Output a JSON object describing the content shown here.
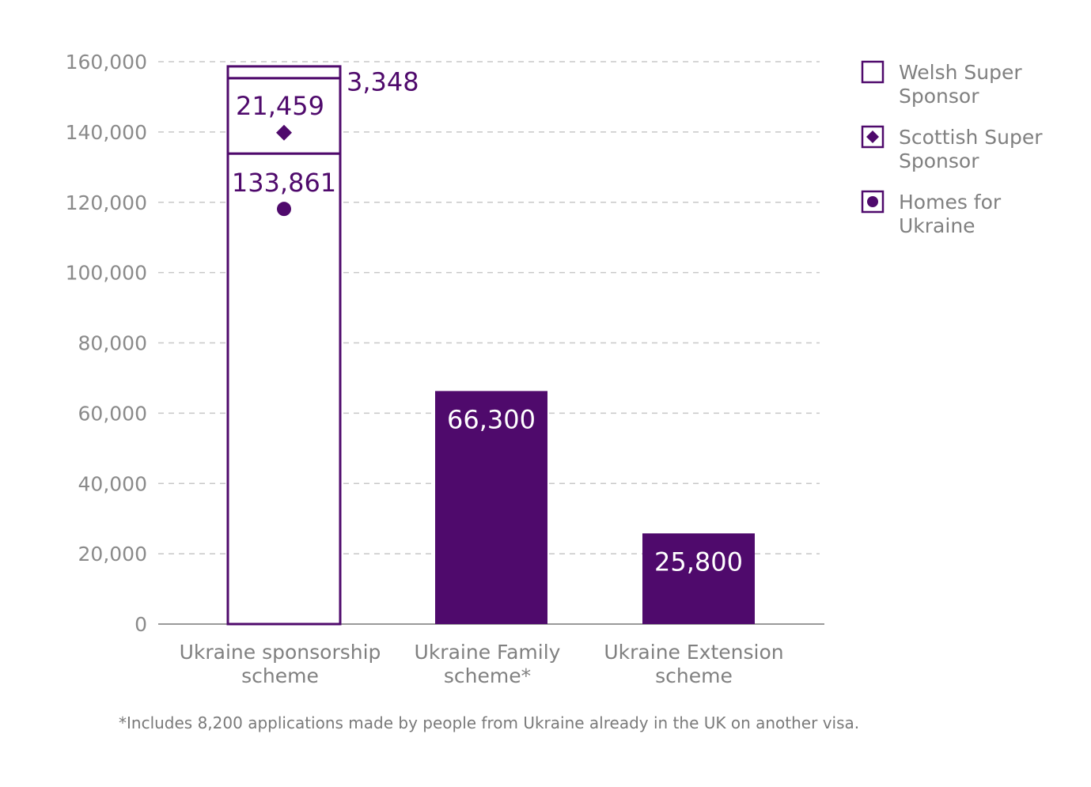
{
  "chart_data": {
    "type": "bar",
    "categories": [
      [
        "Ukraine sponsorship",
        "scheme"
      ],
      [
        "Ukraine Family",
        "scheme*"
      ],
      [
        "Ukraine Extension",
        "scheme"
      ]
    ],
    "yticks": [
      "0",
      "20,000",
      "40,000",
      "60,000",
      "80,000",
      "100,000",
      "120,000",
      "140,000",
      "160,000"
    ],
    "ylim": [
      0,
      160000
    ],
    "grid": true,
    "stacked_bar": {
      "category_index": 0,
      "segments": [
        {
          "name": "Homes for Ukraine",
          "value": 133861,
          "label": "133,861",
          "marker": "circle"
        },
        {
          "name": "Scottish Super Sponsor",
          "value": 21459,
          "label": "21,459",
          "marker": "diamond"
        },
        {
          "name": "Welsh Super Sponsor",
          "value": 3348,
          "label": "3,348",
          "marker": "none"
        }
      ]
    },
    "solid_bars": [
      {
        "category_index": 1,
        "value": 66300,
        "label": "66,300"
      },
      {
        "category_index": 2,
        "value": 25800,
        "label": "25,800"
      }
    ],
    "legend": {
      "placement": "right",
      "items": [
        {
          "label": [
            "Welsh Super",
            "Sponsor"
          ],
          "marker": "empty"
        },
        {
          "label": [
            "Scottish Super",
            "Sponsor"
          ],
          "marker": "diamond"
        },
        {
          "label": [
            "Homes for",
            "Ukraine"
          ],
          "marker": "circle"
        }
      ]
    },
    "footnote": "*Includes 8,200 applications made by people from Ukraine already in the UK on another visa.",
    "colors": {
      "accent": "#4f0a6c",
      "grid": "#c8c8c8",
      "axis": "#9a9a9a",
      "text": "#808080"
    }
  }
}
